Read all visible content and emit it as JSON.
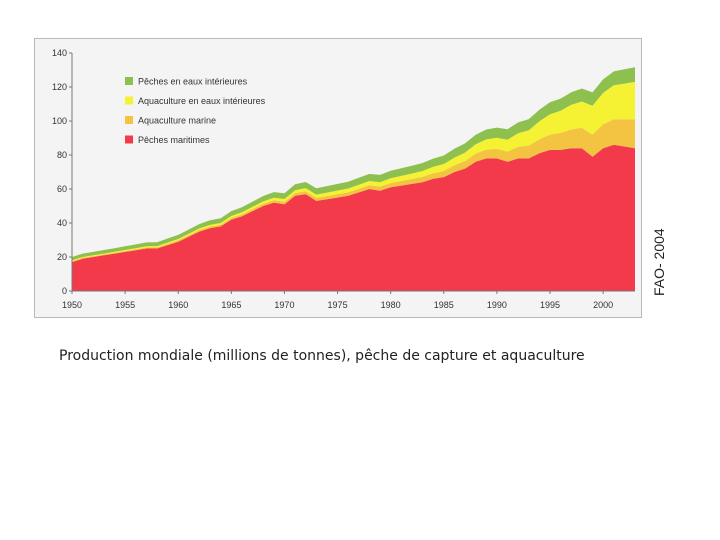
{
  "caption": "Production mondiale (millions de tonnes), pêche de capture et aquaculture",
  "source_label": "FAO- 2004",
  "chart_data": {
    "type": "area",
    "stacked": true,
    "title": "",
    "xlabel": "",
    "ylabel": "",
    "xlim": [
      1950,
      2003
    ],
    "ylim": [
      0,
      140
    ],
    "x_ticks": [
      1950,
      1955,
      1960,
      1965,
      1970,
      1975,
      1980,
      1985,
      1990,
      1995,
      2000
    ],
    "y_ticks": [
      0,
      20,
      40,
      60,
      80,
      100,
      120,
      140
    ],
    "grid": false,
    "legend_position": "top-left",
    "x": [
      1950,
      1951,
      1952,
      1953,
      1954,
      1955,
      1956,
      1957,
      1958,
      1959,
      1960,
      1961,
      1962,
      1963,
      1964,
      1965,
      1966,
      1967,
      1968,
      1969,
      1970,
      1971,
      1972,
      1973,
      1974,
      1975,
      1976,
      1977,
      1978,
      1979,
      1980,
      1981,
      1982,
      1983,
      1984,
      1985,
      1986,
      1987,
      1988,
      1989,
      1990,
      1991,
      1992,
      1993,
      1994,
      1995,
      1996,
      1997,
      1998,
      1999,
      2000,
      2001,
      2002,
      2003
    ],
    "series": [
      {
        "name": "Pêches maritimes",
        "color": "#f23a4b",
        "values": [
          17,
          19,
          20,
          21,
          22,
          23,
          24,
          25,
          25,
          27,
          29,
          32,
          35,
          37,
          38,
          42,
          44,
          47,
          50,
          52,
          51,
          56,
          57,
          53,
          54,
          55,
          56,
          58,
          60,
          59,
          61,
          62,
          63,
          64,
          66,
          67,
          70,
          72,
          76,
          78,
          78,
          76,
          78,
          78,
          81,
          83,
          83,
          84,
          84,
          79,
          84,
          86,
          85,
          84
        ]
      },
      {
        "name": "Aquaculture marine",
        "color": "#f3c342",
        "values": [
          0.5,
          0.5,
          0.5,
          0.5,
          0.5,
          0.5,
          0.6,
          0.6,
          0.7,
          0.7,
          0.8,
          0.8,
          0.9,
          0.9,
          1,
          1,
          1.1,
          1.2,
          1.3,
          1.4,
          1.5,
          1.6,
          1.7,
          1.8,
          1.9,
          2,
          2.1,
          2.2,
          2.3,
          2.4,
          2.5,
          2.7,
          2.9,
          3.1,
          3.3,
          3.6,
          4,
          4.4,
          4.8,
          5.2,
          5.6,
          6,
          6.8,
          7.5,
          8.3,
          9,
          10,
          11,
          12,
          13,
          14,
          15,
          16,
          17
        ]
      },
      {
        "name": "Aquaculture en eaux intérieures",
        "color": "#f4f233",
        "values": [
          0.5,
          0.5,
          0.5,
          0.5,
          0.6,
          0.6,
          0.6,
          0.7,
          0.7,
          0.8,
          0.8,
          0.9,
          0.9,
          1,
          1,
          1.1,
          1.2,
          1.3,
          1.4,
          1.5,
          1.6,
          1.7,
          1.8,
          1.9,
          2,
          2.1,
          2.2,
          2.3,
          2.4,
          2.6,
          2.8,
          3,
          3.2,
          3.5,
          3.8,
          4.1,
          4.5,
          5,
          5.5,
          6,
          6.5,
          7,
          8,
          9,
          10.5,
          12,
          13,
          14.5,
          15.5,
          17,
          18.5,
          20,
          21,
          22
        ]
      },
      {
        "name": "Pêches en eaux intérieures",
        "color": "#8dc04f",
        "values": [
          2,
          2,
          2,
          2.1,
          2.1,
          2.2,
          2.2,
          2.3,
          2.3,
          2.4,
          2.4,
          2.5,
          2.6,
          2.7,
          2.8,
          2.9,
          3,
          3.1,
          3.2,
          3.3,
          3.4,
          3.5,
          3.6,
          3.7,
          3.8,
          3.9,
          4,
          4.1,
          4.2,
          4.3,
          4.4,
          4.5,
          4.6,
          4.7,
          4.8,
          5,
          5.2,
          5.4,
          5.6,
          5.8,
          6,
          6.2,
          6.4,
          6.6,
          6.8,
          7,
          7.2,
          7.4,
          7.6,
          7.8,
          8,
          8.2,
          8.4,
          8.6
        ]
      }
    ]
  }
}
